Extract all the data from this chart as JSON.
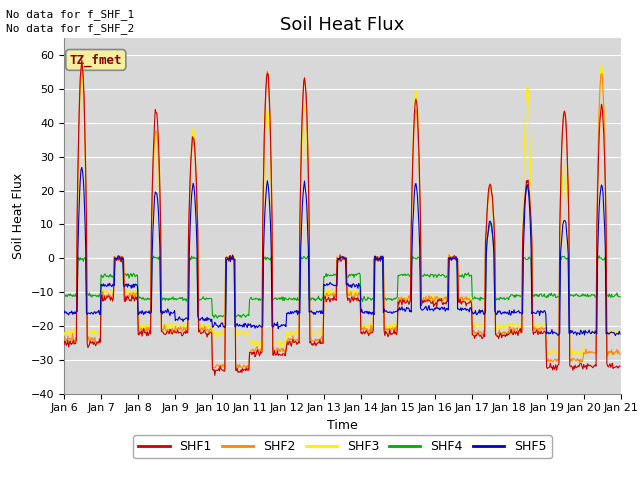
{
  "title": "Soil Heat Flux",
  "ylabel": "Soil Heat Flux",
  "xlabel": "Time",
  "ylim": [
    -40,
    65
  ],
  "yticks": [
    -40,
    -30,
    -20,
    -10,
    0,
    10,
    20,
    30,
    40,
    50,
    60
  ],
  "colors": {
    "SHF1": "#cc0000",
    "SHF2": "#ff8800",
    "SHF3": "#ffee00",
    "SHF4": "#00aa00",
    "SHF5": "#0000cc"
  },
  "legend_labels": [
    "SHF1",
    "SHF2",
    "SHF3",
    "SHF4",
    "SHF5"
  ],
  "note1": "No data for f_SHF_1",
  "note2": "No data for f_SHF_2",
  "tz_label": "TZ_fmet",
  "bg_color": "#d8d8d8",
  "title_fontsize": 13,
  "axis_fontsize": 9,
  "tick_fontsize": 8
}
